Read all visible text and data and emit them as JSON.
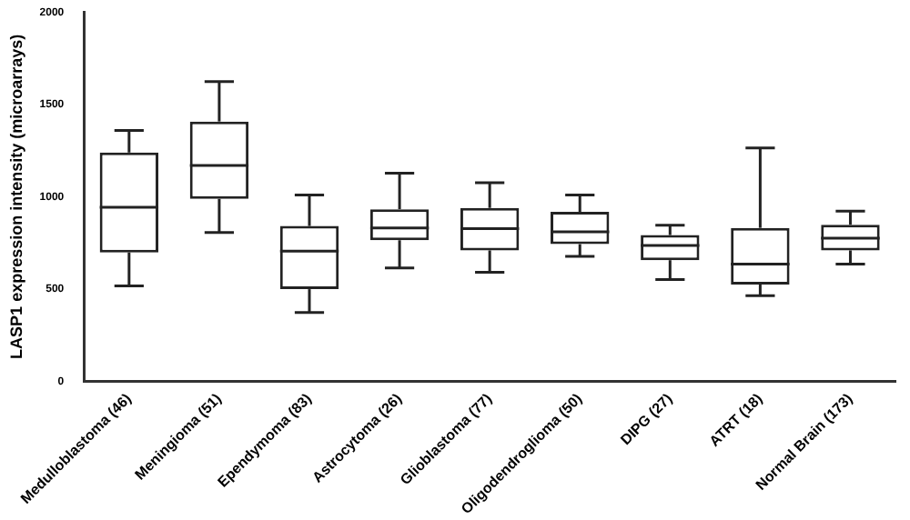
{
  "chart_data": {
    "type": "box",
    "ylabel": "LASP1 expression intensity (microarrays)",
    "categories": [
      "Medulloblastoma (46)",
      "Meningioma (51)",
      "Ependymoma (83)",
      "Astrocytoma (26)",
      "Glioblastoma (77)",
      "Oligodendroglioma (50)",
      "DIPG (27)",
      "ATRT (18)",
      "Normal Brain (173)"
    ],
    "boxes": [
      {
        "low": 517,
        "q1": 698,
        "median": 942,
        "q3": 1239,
        "high": 1358
      },
      {
        "low": 806,
        "q1": 988,
        "median": 1169,
        "q3": 1407,
        "high": 1623
      },
      {
        "low": 373,
        "q1": 499,
        "median": 705,
        "q3": 841,
        "high": 1009
      },
      {
        "low": 614,
        "q1": 764,
        "median": 831,
        "q3": 932,
        "high": 1127
      },
      {
        "low": 590,
        "q1": 709,
        "median": 827,
        "q3": 939,
        "high": 1075
      },
      {
        "low": 677,
        "q1": 743,
        "median": 810,
        "q3": 918,
        "high": 1009
      },
      {
        "low": 551,
        "q1": 656,
        "median": 736,
        "q3": 792,
        "high": 845
      },
      {
        "low": 464,
        "q1": 524,
        "median": 635,
        "q3": 831,
        "high": 1264
      },
      {
        "low": 635,
        "q1": 709,
        "median": 775,
        "q3": 848,
        "high": 921
      }
    ],
    "color": "#222222",
    "ylim": [
      0,
      2000
    ],
    "yticks": [
      0,
      500,
      1000,
      1500,
      2000
    ],
    "grid": false,
    "legend": false
  }
}
